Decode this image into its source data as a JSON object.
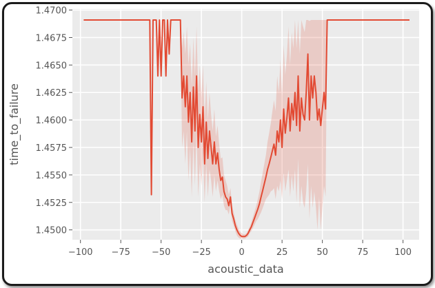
{
  "chart_data": {
    "type": "line",
    "title": "",
    "xlabel": "acoustic_data",
    "ylabel": "time_to_failure",
    "xlim": [
      -105,
      110
    ],
    "ylim": [
      1.4491,
      1.4701
    ],
    "x_ticks": [
      -100,
      -75,
      -50,
      -25,
      0,
      25,
      50,
      75,
      100
    ],
    "x_tick_labels": [
      "−100",
      "−75",
      "−50",
      "−25",
      "0",
      "25",
      "50",
      "75",
      "100"
    ],
    "y_ticks": [
      1.45,
      1.4525,
      1.455,
      1.4575,
      1.46,
      1.4625,
      1.465,
      1.4675,
      1.47
    ],
    "y_tick_labels": [
      "1.4500",
      "1.4525",
      "1.4550",
      "1.4575",
      "1.4600",
      "1.4625",
      "1.4650",
      "1.4675",
      "1.4700"
    ],
    "grid": true,
    "legend": "none",
    "colors": {
      "line": "#e24a33",
      "band": "#e24a33",
      "background": "#ebebeb",
      "grid": "#ffffff"
    },
    "series": [
      {
        "x": [
          -98,
          -57,
          -56,
          -55,
          -54,
          -53,
          -52,
          -51,
          -50,
          -49,
          -48,
          -47,
          -46,
          -45,
          -44,
          -43,
          -42,
          -41,
          -40,
          -39,
          -38,
          -37,
          -36,
          -35,
          -34,
          -33,
          -32,
          -31,
          -30,
          -29,
          -28,
          -27,
          -26,
          -25,
          -24,
          -23,
          -22,
          -21,
          -20,
          -19,
          -18,
          -17,
          -16,
          -15,
          -14,
          -13,
          -12,
          -11,
          -10,
          -9,
          -8,
          -7,
          -6,
          -5,
          -4,
          -3,
          -2,
          -1,
          0,
          1,
          2,
          3,
          4,
          5,
          6,
          7,
          8,
          9,
          10,
          11,
          12,
          13,
          14,
          15,
          16,
          17,
          18,
          19,
          20,
          21,
          22,
          23,
          24,
          25,
          26,
          27,
          28,
          29,
          30,
          31,
          32,
          33,
          34,
          35,
          36,
          37,
          38,
          39,
          40,
          41,
          42,
          43,
          44,
          45,
          46,
          47,
          48,
          49,
          50,
          51,
          52,
          53,
          104
        ],
        "y": [
          1.4691,
          1.4691,
          1.4532,
          1.4691,
          1.4691,
          1.4691,
          1.464,
          1.4691,
          1.464,
          1.4691,
          1.4691,
          1.464,
          1.4691,
          1.466,
          1.4691,
          1.4691,
          1.4691,
          1.4691,
          1.4691,
          1.4691,
          1.4691,
          1.462,
          1.464,
          1.4612,
          1.464,
          1.4598,
          1.4625,
          1.458,
          1.463,
          1.459,
          1.464,
          1.4575,
          1.4605,
          1.458,
          1.4612,
          1.456,
          1.4598,
          1.4565,
          1.459,
          1.4575,
          1.456,
          1.458,
          1.456,
          1.457,
          1.4555,
          1.4545,
          1.4548,
          1.4535,
          1.453,
          1.4528,
          1.4522,
          1.453,
          1.4515,
          1.451,
          1.4504,
          1.45,
          1.4497,
          1.4495,
          1.4494,
          1.4494,
          1.4494,
          1.4495,
          1.4497,
          1.45,
          1.4503,
          1.4507,
          1.4511,
          1.4515,
          1.4519,
          1.4524,
          1.453,
          1.4536,
          1.4542,
          1.4548,
          1.4555,
          1.456,
          1.4566,
          1.4572,
          1.4578,
          1.4568,
          1.459,
          1.458,
          1.46,
          1.4575,
          1.461,
          1.4588,
          1.4602,
          1.462,
          1.459,
          1.4615,
          1.46,
          1.4625,
          1.4595,
          1.464,
          1.459,
          1.462,
          1.4605,
          1.46,
          1.4625,
          1.466,
          1.46,
          1.464,
          1.462,
          1.464,
          1.4625,
          1.46,
          1.461,
          1.4595,
          1.461,
          1.4625,
          1.461,
          1.4691,
          1.4691
        ],
        "lower": [
          1.4691,
          1.4691,
          1.4532,
          1.4691,
          1.4691,
          1.4691,
          1.464,
          1.4691,
          1.464,
          1.4691,
          1.4691,
          1.464,
          1.4691,
          1.466,
          1.4691,
          1.4691,
          1.4691,
          1.4691,
          1.4691,
          1.4691,
          1.4691,
          1.4575,
          1.459,
          1.456,
          1.459,
          1.4545,
          1.4575,
          1.453,
          1.458,
          1.454,
          1.459,
          1.453,
          1.456,
          1.454,
          1.457,
          1.4525,
          1.456,
          1.453,
          1.4555,
          1.4545,
          1.453,
          1.455,
          1.4535,
          1.4545,
          1.4535,
          1.4528,
          1.4532,
          1.4522,
          1.4518,
          1.4518,
          1.4514,
          1.4522,
          1.4508,
          1.4504,
          1.4499,
          1.4495,
          1.4493,
          1.4492,
          1.4492,
          1.4492,
          1.4492,
          1.4493,
          1.4494,
          1.4497,
          1.4499,
          1.4502,
          1.4505,
          1.4508,
          1.451,
          1.4513,
          1.4516,
          1.452,
          1.4524,
          1.4528,
          1.453,
          1.4532,
          1.4535,
          1.4536,
          1.4538,
          1.4528,
          1.454,
          1.4535,
          1.4545,
          1.4528,
          1.4552,
          1.4535,
          1.4545,
          1.4555,
          1.453,
          1.455,
          1.4535,
          1.4555,
          1.4525,
          1.4565,
          1.452,
          1.454,
          1.4525,
          1.452,
          1.4535,
          1.456,
          1.451,
          1.454,
          1.452,
          1.4535,
          1.452,
          1.45,
          1.453,
          1.45,
          1.452,
          1.454,
          1.453,
          1.4691,
          1.4691
        ],
        "upper": [
          1.4691,
          1.4691,
          1.4532,
          1.4691,
          1.4691,
          1.4691,
          1.464,
          1.4691,
          1.464,
          1.4691,
          1.4691,
          1.464,
          1.4691,
          1.466,
          1.4691,
          1.4691,
          1.4691,
          1.4691,
          1.4691,
          1.4691,
          1.4691,
          1.4665,
          1.468,
          1.466,
          1.4685,
          1.465,
          1.467,
          1.463,
          1.4675,
          1.464,
          1.4685,
          1.4625,
          1.465,
          1.462,
          1.465,
          1.46,
          1.4635,
          1.46,
          1.4625,
          1.4605,
          1.459,
          1.461,
          1.4585,
          1.4595,
          1.4578,
          1.4565,
          1.4566,
          1.455,
          1.4545,
          1.454,
          1.4532,
          1.4538,
          1.4522,
          1.4516,
          1.4509,
          1.4505,
          1.4501,
          1.4498,
          1.4497,
          1.4496,
          1.4496,
          1.4497,
          1.45,
          1.4503,
          1.4507,
          1.4512,
          1.4517,
          1.4522,
          1.4528,
          1.4535,
          1.4544,
          1.4552,
          1.456,
          1.4568,
          1.458,
          1.4588,
          1.4597,
          1.4608,
          1.4618,
          1.4608,
          1.464,
          1.4625,
          1.4655,
          1.4622,
          1.4668,
          1.4641,
          1.4659,
          1.4685,
          1.465,
          1.468,
          1.4665,
          1.4691,
          1.4665,
          1.4691,
          1.466,
          1.4691,
          1.4685,
          1.468,
          1.4691,
          1.4691,
          1.469,
          1.4691,
          1.4691,
          1.4691,
          1.4691,
          1.4691,
          1.4691,
          1.4691,
          1.4691,
          1.4691,
          1.4691,
          1.4691,
          1.4691
        ]
      }
    ]
  }
}
